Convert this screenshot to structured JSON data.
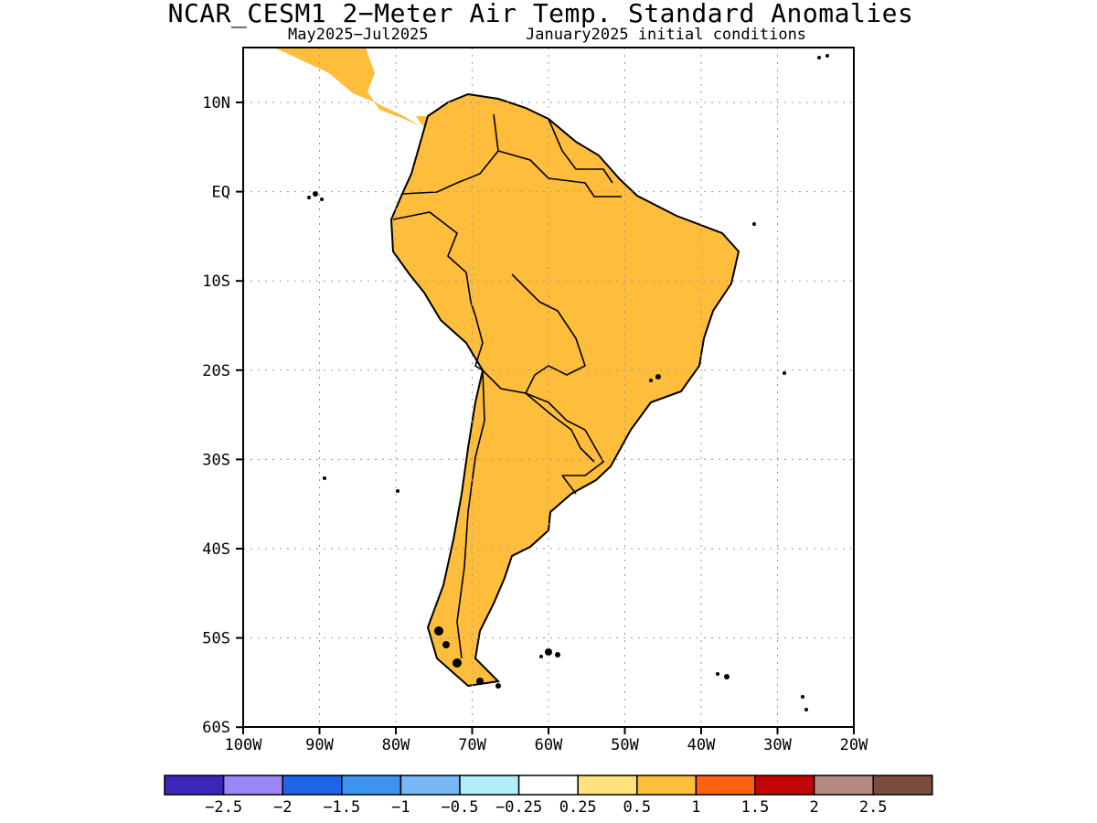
{
  "title": "NCAR_CESM1 2−Meter Air Temp. Standard Anomalies",
  "subtitle_left": "May2025−Jul2025",
  "subtitle_right": "January2025 initial conditions",
  "lat_labels": [
    "10N",
    "EQ",
    "10S",
    "20S",
    "30S",
    "40S",
    "50S",
    "60S"
  ],
  "lon_labels": [
    "100W",
    "90W",
    "80W",
    "70W",
    "60W",
    "50W",
    "40W",
    "30W",
    "20W"
  ],
  "colorbar": {
    "colors": [
      "#3a26b8",
      "#9a86f4",
      "#1f64e6",
      "#3c94f0",
      "#78b6f5",
      "#b2eef8",
      "#ffffff",
      "#ffe37a",
      "#ffbd3c",
      "#ff6112",
      "#c30404",
      "#b48a82",
      "#7a4c3d"
    ],
    "labels": [
      "−2.5",
      "−2",
      "−1.5",
      "−1",
      "−0.5",
      "−0.25",
      "0.25",
      "0.5",
      "1",
      "1.5",
      "2",
      "2.5"
    ]
  },
  "colors": {
    "land": "#ffbd3c",
    "coast": "#000000",
    "grid": "#9a9a9a"
  }
}
